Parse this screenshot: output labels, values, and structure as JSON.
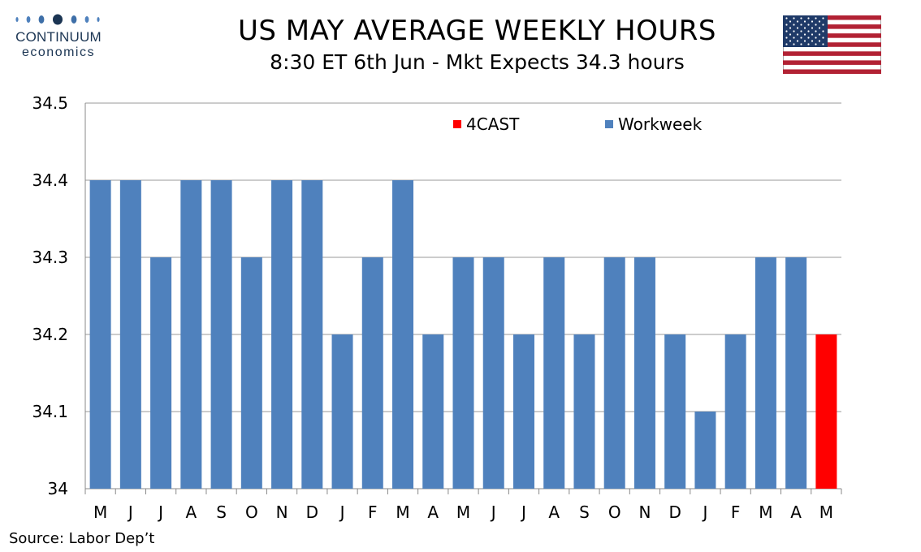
{
  "logo": {
    "word": "CONTINUUM",
    "sub": "economics"
  },
  "title": "US MAY AVERAGE WEEKLY HOURS",
  "subtitle": "8:30 ET 6th Jun - Mkt Expects 34.3 hours",
  "source": "Source: Labor Dep’t",
  "colors": {
    "workweek": "#4f81bd",
    "forecast": "#ff0000",
    "grid": "#999999"
  },
  "chart_data": {
    "type": "bar",
    "categories": [
      "M",
      "J",
      "J",
      "A",
      "S",
      "O",
      "N",
      "D",
      "J",
      "F",
      "M",
      "A",
      "M",
      "J",
      "J",
      "A",
      "S",
      "O",
      "N",
      "D",
      "J",
      "F",
      "M",
      "A",
      "M"
    ],
    "values": [
      34.4,
      34.4,
      34.3,
      34.4,
      34.4,
      34.3,
      34.4,
      34.4,
      34.2,
      34.3,
      34.4,
      34.2,
      34.3,
      34.3,
      34.2,
      34.3,
      34.2,
      34.3,
      34.3,
      34.2,
      34.1,
      34.2,
      34.3,
      34.3,
      34.2
    ],
    "series": [
      {
        "name": "4CAST",
        "color": "#ff0000"
      },
      {
        "name": "Workweek",
        "color": "#4f81bd"
      }
    ],
    "forecast_index": 24,
    "ylim": [
      34,
      34.5
    ],
    "yticks": [
      "34",
      "34.1",
      "34.2",
      "34.3",
      "34.4",
      "34.5"
    ],
    "grid": true,
    "legend": "top-center",
    "xlabel": "",
    "ylabel": ""
  }
}
